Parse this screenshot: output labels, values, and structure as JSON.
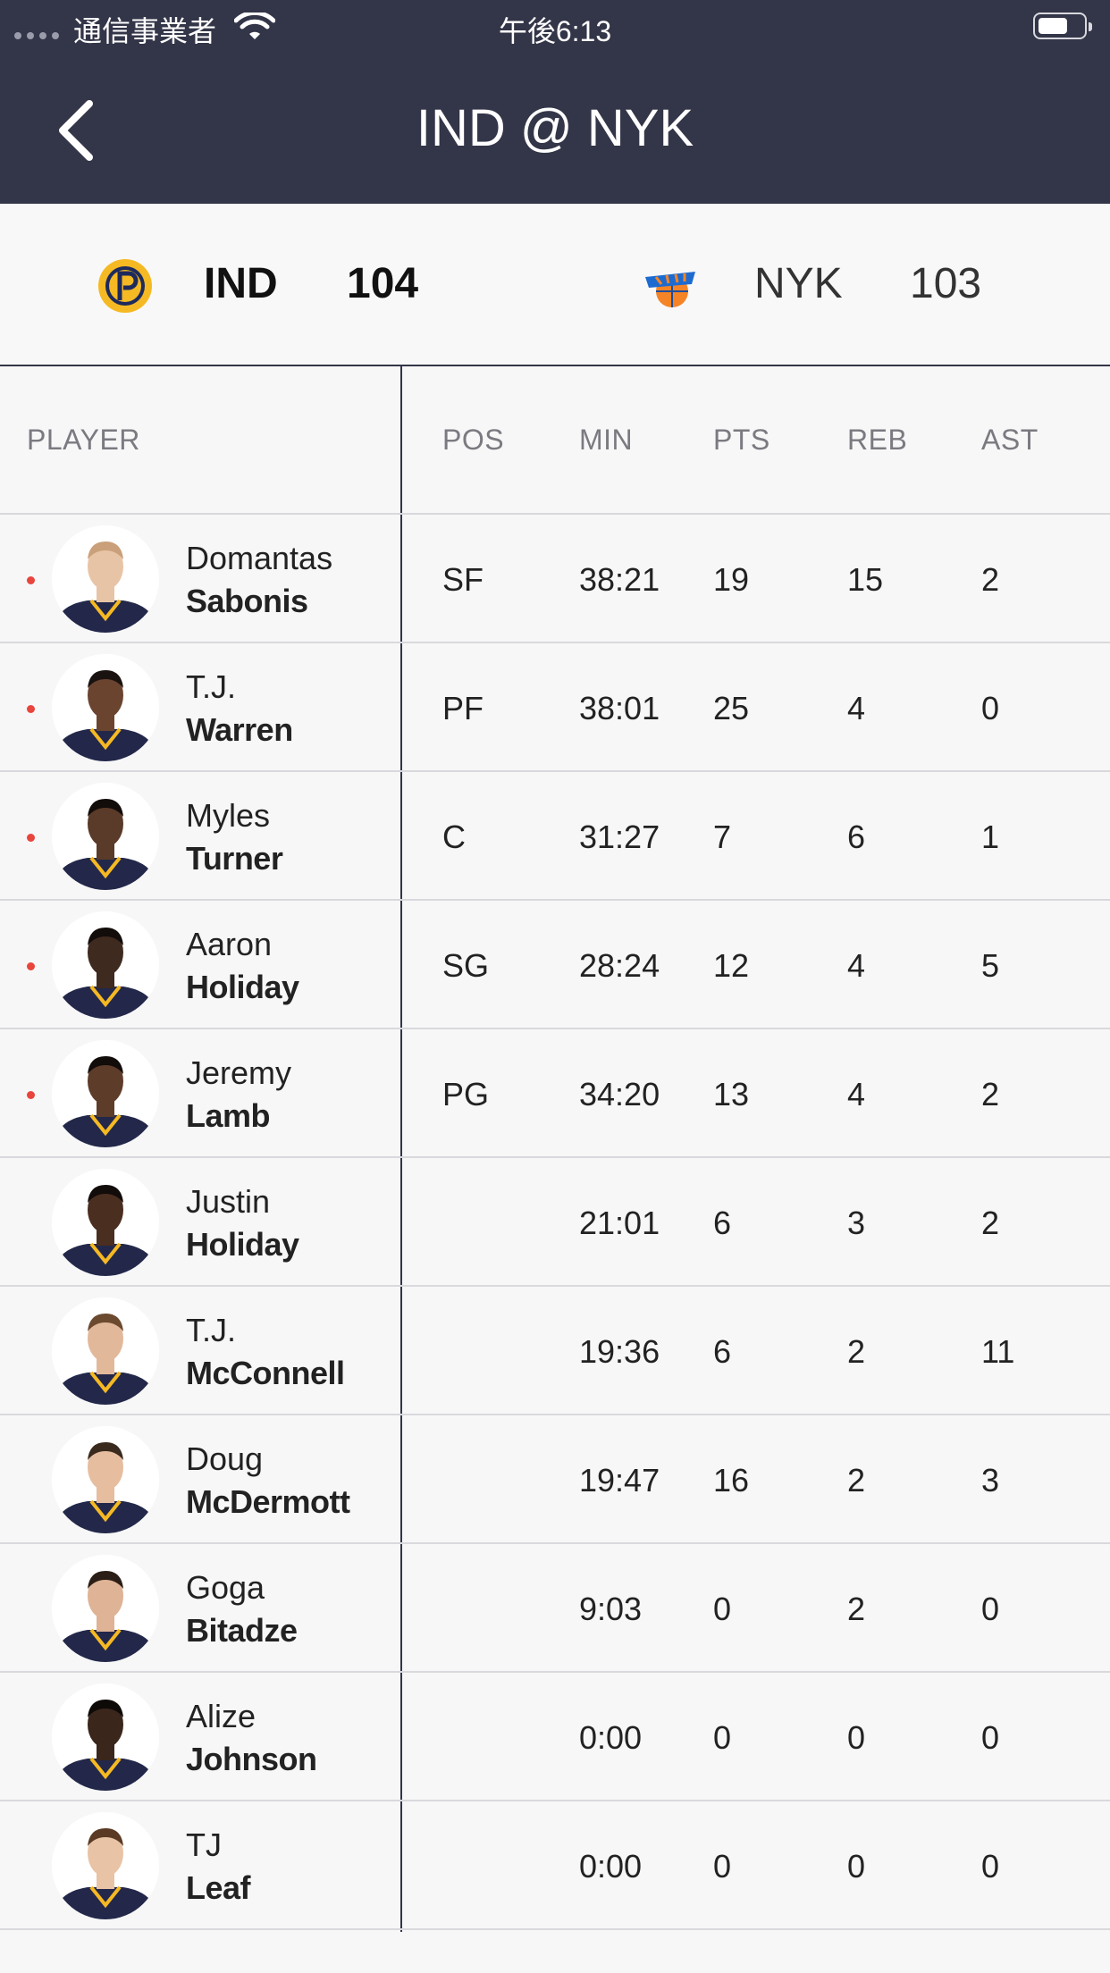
{
  "status_bar": {
    "carrier": "通信事業者",
    "time": "午後6:13"
  },
  "nav": {
    "title": "IND @ NYK"
  },
  "scoreboard": {
    "home": {
      "abbr": "IND",
      "score": "104",
      "logo_icon": "pacers-logo-icon"
    },
    "away": {
      "abbr": "NYK",
      "score": "103",
      "logo_icon": "knicks-logo-icon"
    }
  },
  "table": {
    "headers": {
      "player": "PLAYER",
      "pos": "POS",
      "min": "MIN",
      "pts": "PTS",
      "reb": "REB",
      "ast": "AST"
    },
    "rows": [
      {
        "first": "Domantas",
        "last": "Sabonis",
        "pos": "SF",
        "min": "38:21",
        "pts": "19",
        "reb": "15",
        "ast": "2",
        "starter": true
      },
      {
        "first": "T.J.",
        "last": "Warren",
        "pos": "PF",
        "min": "38:01",
        "pts": "25",
        "reb": "4",
        "ast": "0",
        "starter": true
      },
      {
        "first": "Myles",
        "last": "Turner",
        "pos": "C",
        "min": "31:27",
        "pts": "7",
        "reb": "6",
        "ast": "1",
        "starter": true
      },
      {
        "first": "Aaron",
        "last": "Holiday",
        "pos": "SG",
        "min": "28:24",
        "pts": "12",
        "reb": "4",
        "ast": "5",
        "starter": true
      },
      {
        "first": "Jeremy",
        "last": "Lamb",
        "pos": "PG",
        "min": "34:20",
        "pts": "13",
        "reb": "4",
        "ast": "2",
        "starter": true
      },
      {
        "first": "Justin",
        "last": "Holiday",
        "pos": "",
        "min": "21:01",
        "pts": "6",
        "reb": "3",
        "ast": "2",
        "starter": false
      },
      {
        "first": "T.J.",
        "last": "McConnell",
        "pos": "",
        "min": "19:36",
        "pts": "6",
        "reb": "2",
        "ast": "11",
        "starter": false
      },
      {
        "first": "Doug",
        "last": "McDermott",
        "pos": "",
        "min": "19:47",
        "pts": "16",
        "reb": "2",
        "ast": "3",
        "starter": false
      },
      {
        "first": "Goga",
        "last": "Bitadze",
        "pos": "",
        "min": "9:03",
        "pts": "0",
        "reb": "2",
        "ast": "0",
        "starter": false
      },
      {
        "first": "Alize",
        "last": "Johnson",
        "pos": "",
        "min": "0:00",
        "pts": "0",
        "reb": "0",
        "ast": "0",
        "starter": false
      },
      {
        "first": "TJ",
        "last": "Leaf",
        "pos": "",
        "min": "0:00",
        "pts": "0",
        "reb": "0",
        "ast": "0",
        "starter": false
      }
    ]
  },
  "colors": {
    "header_bg": "#333548",
    "starter_dot": "#e8453c",
    "jersey": "#23284a"
  }
}
